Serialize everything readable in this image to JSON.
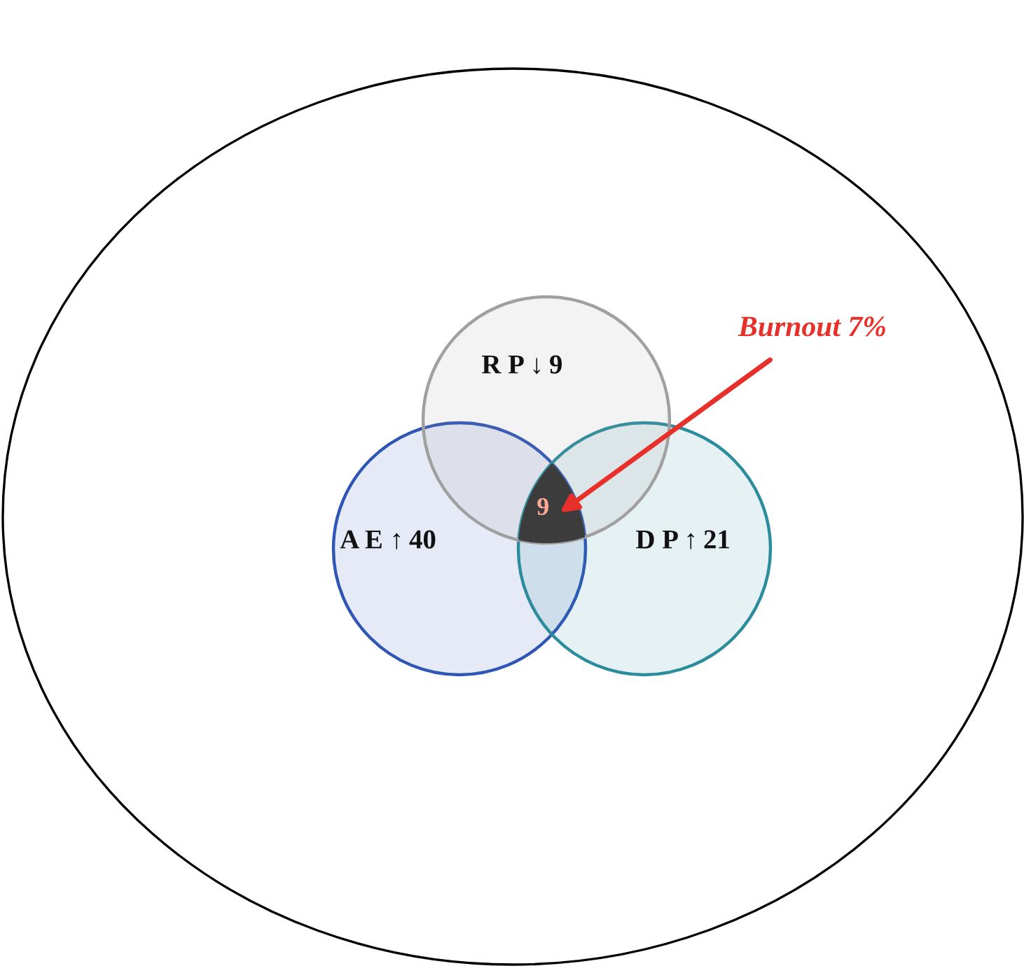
{
  "chart_data": {
    "type": "other",
    "categories": [
      "A E ↑",
      "D P ↑",
      "R P ↓"
    ],
    "values": [
      40,
      21,
      9
    ],
    "data_labels": true,
    "colors": [
      "#2f56b5",
      "#2a8c9c",
      "#a0a0a0"
    ],
    "annotations": [
      "9",
      "Burnout 7%"
    ]
  }
}
